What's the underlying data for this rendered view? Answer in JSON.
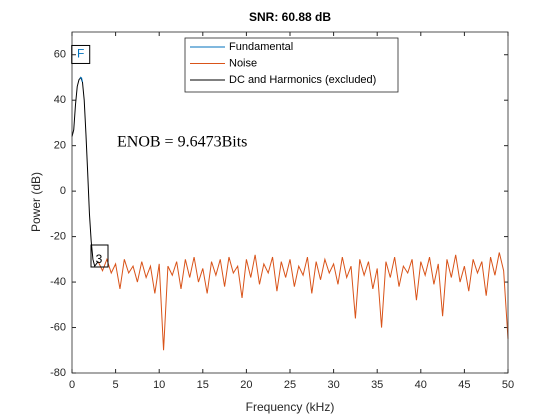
{
  "chart_data": {
    "type": "line",
    "title": "SNR:  60.88 dB",
    "xlabel": "Frequency (kHz)",
    "ylabel": "Power (dB)",
    "xlim": [
      0,
      50
    ],
    "xticks": [
      0,
      5,
      10,
      15,
      20,
      25,
      30,
      35,
      40,
      45,
      50
    ],
    "ylim": [
      -80,
      70
    ],
    "yticks": [
      -80,
      -60,
      -40,
      -20,
      0,
      20,
      40,
      60
    ],
    "legend": "top",
    "annotations": [
      "F",
      "3",
      "ENOB = 9.6473Bits"
    ],
    "series": [
      {
        "name": "Fundamental",
        "color": "#0072BD",
        "x": [
          0.9,
          1.0,
          1.1,
          1.2
        ],
        "values": [
          49.5,
          50,
          49.8,
          48
        ]
      },
      {
        "name": "Noise",
        "color": "#D95319",
        "x": [
          3.0,
          3.5,
          4.0,
          4.5,
          5.0,
          5.5,
          6.0,
          6.5,
          7.0,
          7.5,
          8.0,
          8.5,
          9.0,
          9.5,
          10.0,
          10.5,
          11.0,
          11.5,
          12.0,
          12.5,
          13.0,
          13.5,
          14.0,
          14.5,
          15.0,
          15.5,
          16.0,
          16.5,
          17.0,
          17.5,
          18.0,
          18.5,
          19.0,
          19.5,
          20.0,
          20.5,
          21.0,
          21.5,
          22.0,
          22.5,
          23.0,
          23.5,
          24.0,
          24.5,
          25.0,
          25.5,
          26.0,
          26.5,
          27.0,
          27.5,
          28.0,
          28.5,
          29.0,
          29.5,
          30.0,
          30.5,
          31.0,
          31.5,
          32.0,
          32.5,
          33.0,
          33.5,
          34.0,
          34.5,
          35.0,
          35.5,
          36.0,
          36.5,
          37.0,
          37.5,
          38.0,
          38.5,
          39.0,
          39.5,
          40.0,
          40.5,
          41.0,
          41.5,
          42.0,
          42.5,
          43.0,
          43.5,
          44.0,
          44.5,
          45.0,
          45.5,
          46.0,
          46.5,
          47.0,
          47.5,
          48.0,
          48.5,
          49.0,
          49.5,
          50.0
        ],
        "values": [
          -31,
          -35,
          -30,
          -36,
          -32,
          -43,
          -30,
          -36,
          -33,
          -40,
          -31,
          -38,
          -33,
          -45,
          -32,
          -70,
          -33,
          -37,
          -31,
          -43,
          -30,
          -38,
          -29,
          -40,
          -34,
          -45,
          -31,
          -37,
          -30,
          -42,
          -29,
          -36,
          -33,
          -47,
          -30,
          -38,
          -28,
          -41,
          -32,
          -36,
          -29,
          -44,
          -31,
          -38,
          -30,
          -42,
          -33,
          -37,
          -29,
          -45,
          -31,
          -39,
          -30,
          -36,
          -32,
          -41,
          -29,
          -38,
          -33,
          -56,
          -30,
          -37,
          -31,
          -43,
          -34,
          -60,
          -31,
          -38,
          -29,
          -42,
          -33,
          -36,
          -30,
          -48,
          -31,
          -37,
          -29,
          -41,
          -32,
          -55,
          -30,
          -38,
          -28,
          -40,
          -33,
          -44,
          -30,
          -36,
          -31,
          -46,
          -29,
          -37,
          -27,
          -35,
          -65
        ]
      },
      {
        "name": "DC and Harmonics (excluded)",
        "color": "#000000",
        "x": [
          0,
          0.2,
          0.4,
          0.6,
          0.8,
          1.0,
          1.2,
          1.4,
          1.6,
          1.8,
          2.0,
          2.2,
          2.4,
          2.6,
          2.8,
          3.0
        ],
        "values": [
          24,
          27,
          38,
          46,
          49,
          50,
          48,
          40,
          25,
          8,
          -10,
          -22,
          -30,
          -33,
          -32,
          -31
        ]
      }
    ]
  }
}
